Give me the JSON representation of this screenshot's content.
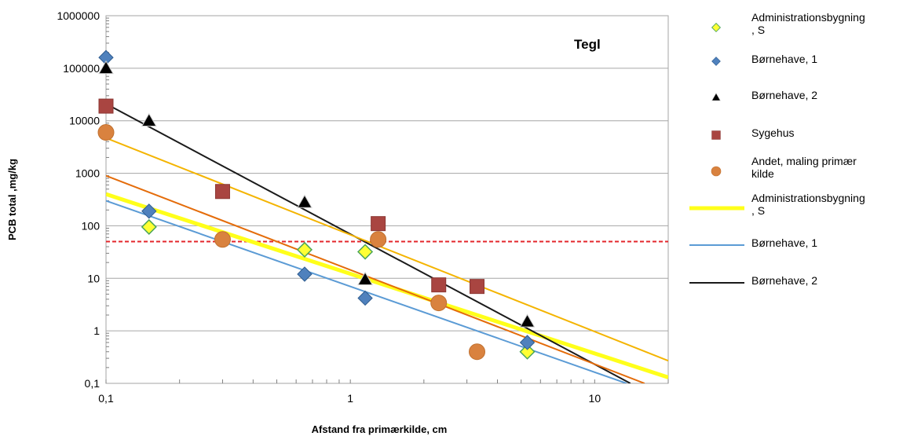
{
  "chart_data": {
    "type": "scatter",
    "xlabel": "Afstand fra primærkilde, cm",
    "ylabel": "PCB total ,mg/kg",
    "x_scale": "log",
    "y_scale": "log",
    "xlim": [
      0.1,
      20
    ],
    "ylim": [
      0.1,
      1000000
    ],
    "x_ticks": [
      {
        "value": 0.1,
        "label": "0,1"
      },
      {
        "value": 1,
        "label": "1"
      },
      {
        "value": 10,
        "label": "10"
      }
    ],
    "y_ticks": [
      {
        "value": 0.1,
        "label": "0,1"
      },
      {
        "value": 1,
        "label": "1"
      },
      {
        "value": 10,
        "label": "10"
      },
      {
        "value": 100,
        "label": "100"
      },
      {
        "value": 1000,
        "label": "1000"
      },
      {
        "value": 10000,
        "label": "10000"
      },
      {
        "value": 100000,
        "label": "100000"
      },
      {
        "value": 1000000,
        "label": "1000000"
      }
    ],
    "annotation": "Tegl",
    "reference_line": {
      "y": 50,
      "color": "#e3262b",
      "style": "dashed"
    },
    "series": [
      {
        "name": "Administrationsbygning\n, S",
        "marker": "diamond-hollow",
        "color": "#ffff33",
        "edge": "#4aa55a",
        "points": [
          [
            0.15,
            95
          ],
          [
            0.65,
            35
          ],
          [
            1.15,
            32
          ],
          [
            5.3,
            0.4
          ]
        ]
      },
      {
        "name": "Børnehave, 1",
        "marker": "diamond",
        "color": "#4f81bd",
        "edge": "#2e5c8f",
        "points": [
          [
            0.1,
            160000
          ],
          [
            0.15,
            190
          ],
          [
            0.65,
            12
          ],
          [
            1.15,
            4.2
          ],
          [
            5.3,
            0.6
          ]
        ]
      },
      {
        "name": "Børnehave, 2",
        "marker": "triangle",
        "color": "#000000",
        "edge": "#ffffff",
        "points": [
          [
            0.1,
            100000
          ],
          [
            0.15,
            10000
          ],
          [
            0.65,
            280
          ],
          [
            1.15,
            9.5
          ],
          [
            5.3,
            1.5
          ]
        ]
      },
      {
        "name": "Sygehus",
        "marker": "square",
        "color": "#a94541",
        "edge": "#8c3834",
        "points": [
          [
            0.1,
            19000
          ],
          [
            0.3,
            450
          ],
          [
            1.3,
            110
          ],
          [
            2.3,
            7.5
          ],
          [
            3.3,
            7
          ]
        ]
      },
      {
        "name": "Andet, maling primær\nkilde",
        "marker": "circle",
        "color": "#d9823f",
        "edge": "#c0702f",
        "points": [
          [
            0.1,
            6000
          ],
          [
            0.3,
            55
          ],
          [
            1.3,
            55
          ],
          [
            2.3,
            3.4
          ],
          [
            3.3,
            0.4
          ]
        ]
      }
    ],
    "trendlines": [
      {
        "name": "Administrationsbygning\n, S",
        "color": "#ffff1a",
        "width": 5,
        "from": [
          0.1,
          400
        ],
        "to": [
          20,
          0.13
        ]
      },
      {
        "name": "Børnehave, 1",
        "color": "#5b9bd5",
        "width": 2,
        "from": [
          0.1,
          300
        ],
        "to": [
          13.5,
          0.1
        ]
      },
      {
        "name": "Børnehave, 2",
        "color": "#1a1a1a",
        "width": 2,
        "from": [
          0.1,
          21000
        ],
        "to": [
          14,
          0.1
        ]
      },
      {
        "name": "",
        "color": "#f4b400",
        "width": 2,
        "from": [
          0.1,
          4700
        ],
        "to": [
          20,
          0.27
        ]
      },
      {
        "name": "",
        "color": "#e46c0a",
        "width": 2,
        "from": [
          0.1,
          900
        ],
        "to": [
          16,
          0.1
        ]
      }
    ],
    "legend_position": "right",
    "grid": {
      "horizontal": true,
      "vertical": false,
      "color": "#a6a6a6"
    }
  }
}
